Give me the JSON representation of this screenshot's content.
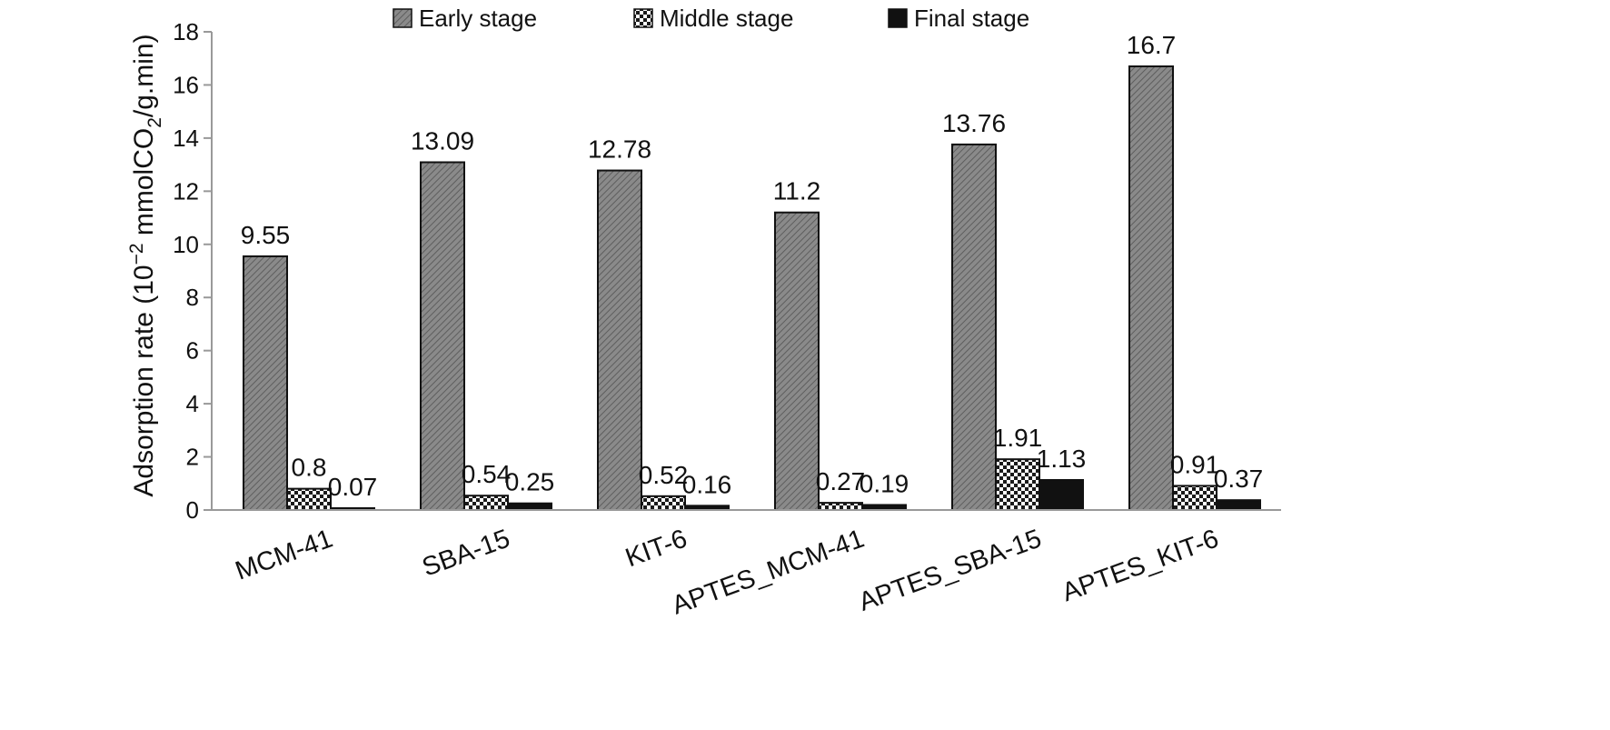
{
  "chart_data": {
    "type": "bar",
    "categories": [
      "MCM-41",
      "SBA-15",
      "KIT-6",
      "APTES_MCM-41",
      "APTES_SBA-15",
      "APTES_KIT-6"
    ],
    "series": [
      {
        "name": "Early stage",
        "values": [
          9.55,
          13.09,
          12.78,
          11.2,
          13.76,
          16.7
        ],
        "labels": [
          "9.55",
          "13.09",
          "12.78",
          "11.2",
          "13.76",
          "16.7"
        ],
        "fill": "hatch"
      },
      {
        "name": "Middle stage",
        "values": [
          0.8,
          0.54,
          0.52,
          0.27,
          1.91,
          0.91
        ],
        "labels": [
          "0.8",
          "0.54",
          "0.52",
          "0.27",
          "1.91",
          "0.91"
        ],
        "fill": "checker"
      },
      {
        "name": "Final stage",
        "values": [
          0.07,
          0.25,
          0.16,
          0.19,
          1.13,
          0.37
        ],
        "labels": [
          "0.07",
          "0.25",
          "0.16",
          "0.19",
          "1.13",
          "0.37"
        ],
        "fill": "solid"
      }
    ],
    "title": "",
    "xlabel": "",
    "ylabel": {
      "prefix": "Adsorption rate (10",
      "exponent": "−2",
      "middle": " mmolCO",
      "subscript": "2",
      "suffix": "/g.min)"
    },
    "ylim": [
      0,
      18
    ],
    "yticks": [
      0,
      2,
      4,
      6,
      8,
      10,
      12,
      14,
      16,
      18
    ],
    "ytick_labels": [
      "0",
      "2",
      "4",
      "6",
      "8",
      "10",
      "12",
      "14",
      "16",
      "18"
    ],
    "grid": false,
    "legend_position": "top",
    "colors": {
      "bar_stroke": "#111111",
      "hatch_base": "#8a8a8a",
      "final_fill": "#111111",
      "axis": "#999999"
    }
  }
}
